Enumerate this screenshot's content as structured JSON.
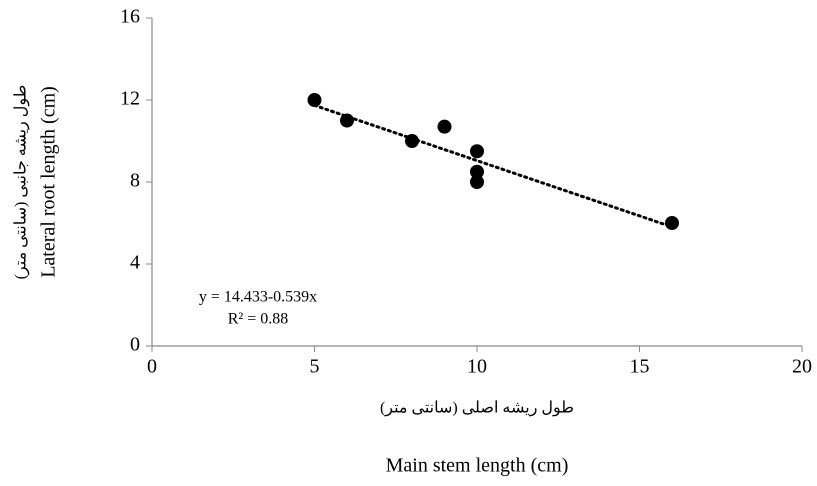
{
  "chart_data": {
    "type": "scatter",
    "x": [
      5,
      6,
      8,
      9,
      10,
      10,
      10,
      16
    ],
    "values": [
      12,
      11,
      10,
      10.7,
      9.5,
      8.5,
      8,
      6
    ],
    "color": "#000000",
    "trendline": {
      "x": [
        5,
        16
      ],
      "y": [
        11.738,
        5.809
      ],
      "color": "#000000"
    },
    "annotations": [
      "y = 14.433-0.539x",
      "R² = 0.88"
    ],
    "x_label_fa": "طول ریشه اصلی (سانتی متر)",
    "x_label": "Main stem length (cm)",
    "y_label_fa": "طول ریشه جانبی (سانتی متر)",
    "y_label": "Lateral root length (cm)",
    "xlim": [
      0,
      20
    ],
    "xticks": [
      0,
      5,
      10,
      15,
      20
    ],
    "ylim": [
      0,
      16
    ],
    "yticks": [
      0,
      4,
      8,
      12,
      16
    ],
    "grid": false
  }
}
